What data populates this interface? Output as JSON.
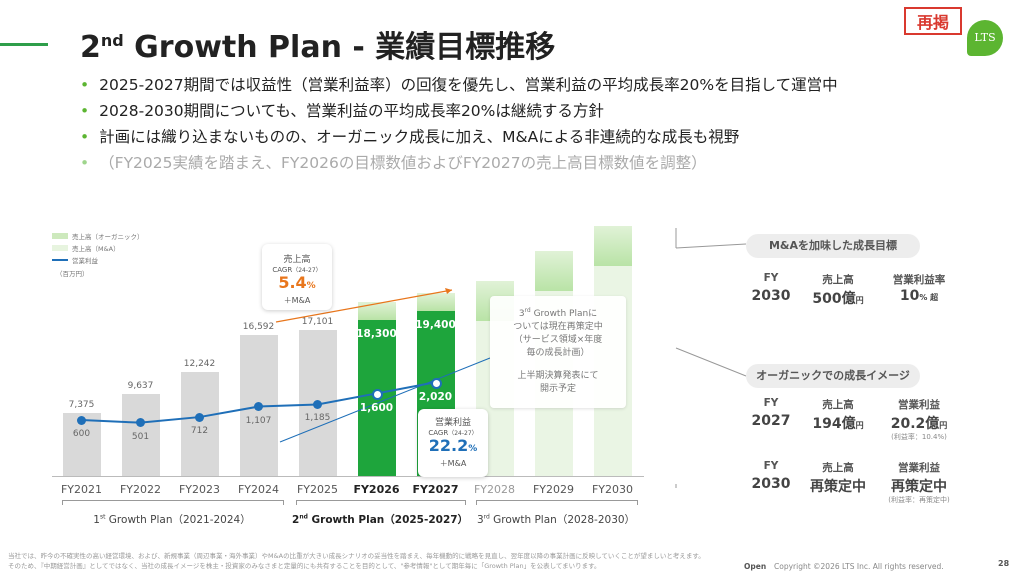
{
  "header": {
    "title_main": "2",
    "title_sup": "nd",
    "title_rest": " Growth Plan - 業績目標推移",
    "badge": "再掲",
    "logo": "LTS"
  },
  "bullets": [
    "2025-2027期間では収益性（営業利益率）の回復を優先し、営業利益の平均成長率20%を目指して運営中",
    "2028-2030期間についても、営業利益の平均成長率20%は継続する方針",
    "計画には織り込まないものの、オーガニック成長に加え、M&Aによる非連続的な成長も視野",
    "（FY2025実績を踏まえ、FY2026の目標数値およびFY2027の売上高目標数値を調整）"
  ],
  "legend": {
    "organic": "売上高（オーガニック）",
    "ma": "売上高（M&A）",
    "op": "営業利益",
    "unit": "（百万円）"
  },
  "chart_data": {
    "type": "bar",
    "categories": [
      "FY2021",
      "FY2022",
      "FY2023",
      "FY2024",
      "FY2025",
      "FY2026",
      "FY2027",
      "FY2028",
      "FY2029",
      "FY2030"
    ],
    "series": [
      {
        "name": "売上高（オーガニック）",
        "values": [
          7375,
          9637,
          12242,
          16592,
          17101,
          18300,
          19400,
          null,
          null,
          null
        ]
      },
      {
        "name": "営業利益",
        "values": [
          600,
          501,
          712,
          1107,
          1185,
          1600,
          2020,
          null,
          null,
          null
        ]
      }
    ],
    "ylim": [
      0,
      30000
    ]
  },
  "cagr_sales": {
    "label1": "売上高",
    "label2": "CAGR",
    "period": "（24-27）",
    "value": "5.4",
    "unit": "%",
    "note": "＋M&A"
  },
  "cagr_op": {
    "label1": "営業利益",
    "label2": "CAGR",
    "period": "（24-27）",
    "value": "22.2",
    "unit": "%",
    "note": "＋M&A"
  },
  "third_plan_note": {
    "sup": "rd",
    "line1_pre": "3",
    "line1_post": " Growth Planに",
    "line2": "ついては現在再策定中",
    "line3": "（サービス領域×年度",
    "line4": "毎の成長計画）",
    "line5": "上半期決算発表にて",
    "line6": "開示予定"
  },
  "plans": [
    {
      "n": "1",
      "sup": "st",
      "rest": " Growth Plan（2021-2024）"
    },
    {
      "n": "2",
      "sup": "nd",
      "rest": " Growth Plan（2025-2027）"
    },
    {
      "n": "3",
      "sup": "rd",
      "rest": " Growth Plan（2028-2030）"
    }
  ],
  "right": {
    "ma_title": "M&Aを加味した成長目標",
    "organic_title": "オーガニックでの成長イメージ",
    "h_fy": "FY",
    "h_sales": "売上高",
    "h_margin": "営業利益率",
    "h_op": "営業利益",
    "ma_row": {
      "fy": "2030",
      "sales": "500億",
      "sales_unit": "円",
      "margin": "10",
      "margin_unit": "% 超"
    },
    "org_row1": {
      "fy": "2027",
      "sales": "194億",
      "sales_unit": "円",
      "op": "20.2億",
      "op_unit": "円",
      "note": "(利益率：10.4%)"
    },
    "org_row2": {
      "fy": "2030",
      "sales": "再策定中",
      "op": "再策定中",
      "note": "(利益率：再策定中)"
    }
  },
  "footer": {
    "line1": "当社では、昨今の不確実性の高い経営環境、および、新規事業（周辺事業・海外事業）やM&Aの比重が大きい成長シナリオの妥当性を踏まえ、毎年機動的に戦略を見直し、翌年度以降の事業計画に反映していくことが望ましいと考えます。",
    "line2": "そのため、『中期経営計画』としてではなく、当社の成長イメージを株主・投資家のみなさまと定量的にも共有することを目的として、\"参考情報\"として期年毎に「Growth Plan」を公表してまいります。",
    "open": "Open",
    "copyright": "Copyright ©2026 LTS Inc. All rights reserved.",
    "page": "28"
  }
}
